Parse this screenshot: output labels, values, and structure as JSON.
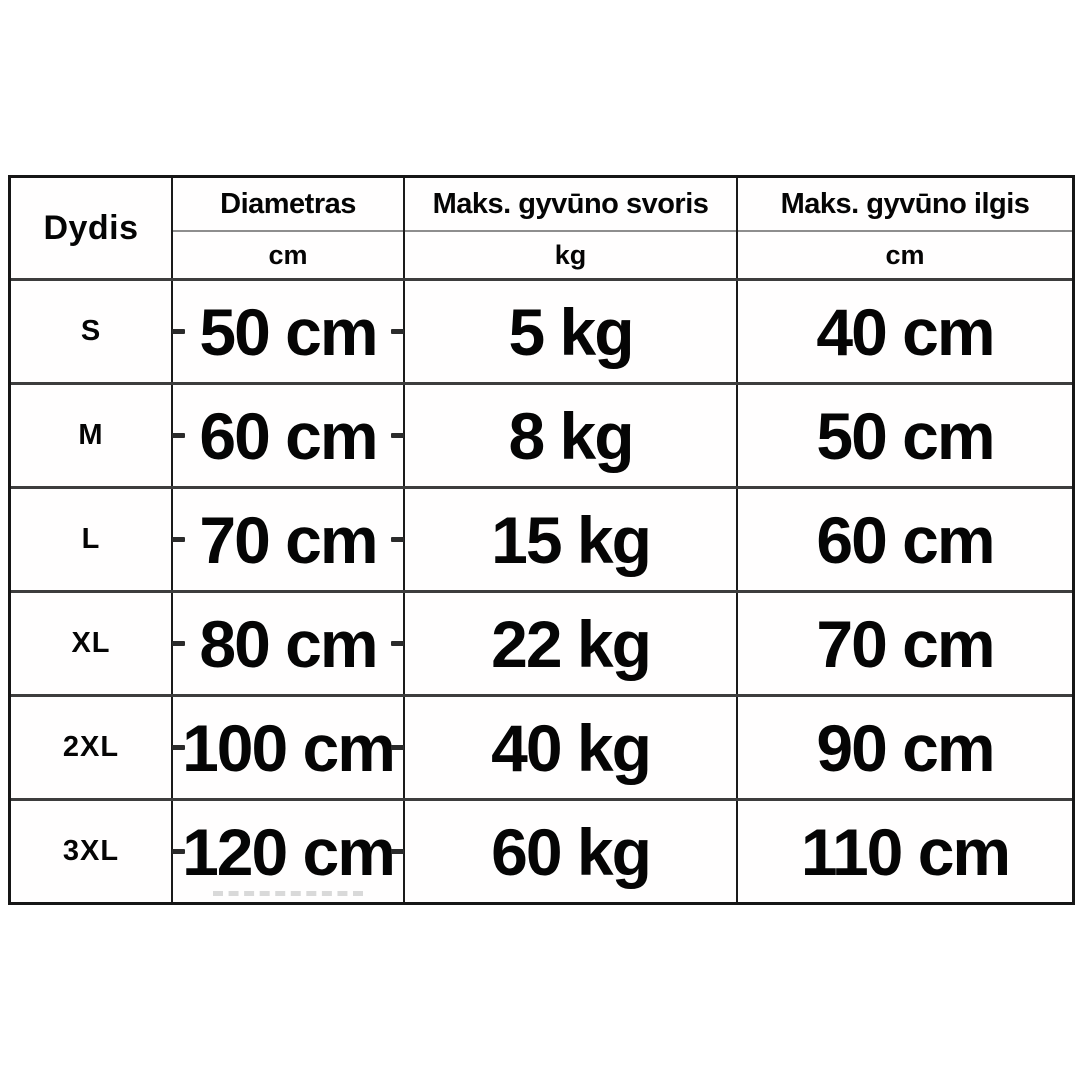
{
  "accent_colors": {
    "grid_vertical": "#1a1a1a",
    "grid_horizontal": "#3d3d3d",
    "header_divider": "#8e8e8e",
    "text": "#050505",
    "background": "#ffffff"
  },
  "chart_data": {
    "type": "table",
    "columns": [
      {
        "label": "Dydis",
        "unit": ""
      },
      {
        "label": "Diametras",
        "unit": "cm"
      },
      {
        "label": "Maks. gyvūno svoris",
        "unit": "kg"
      },
      {
        "label": "Maks. gyvūno ilgis",
        "unit": "cm"
      }
    ],
    "rows": [
      [
        "S",
        "50 cm",
        "5 kg",
        "40 cm"
      ],
      [
        "M",
        "60 cm",
        "8 kg",
        "50 cm"
      ],
      [
        "L",
        "70 cm",
        "15 kg",
        "60 cm"
      ],
      [
        "XL",
        "80 cm",
        "22 kg",
        "70 cm"
      ],
      [
        "2XL",
        "100 cm",
        "40 kg",
        "90 cm"
      ],
      [
        "3XL",
        "120 cm",
        "60 kg",
        "110 cm"
      ]
    ]
  }
}
